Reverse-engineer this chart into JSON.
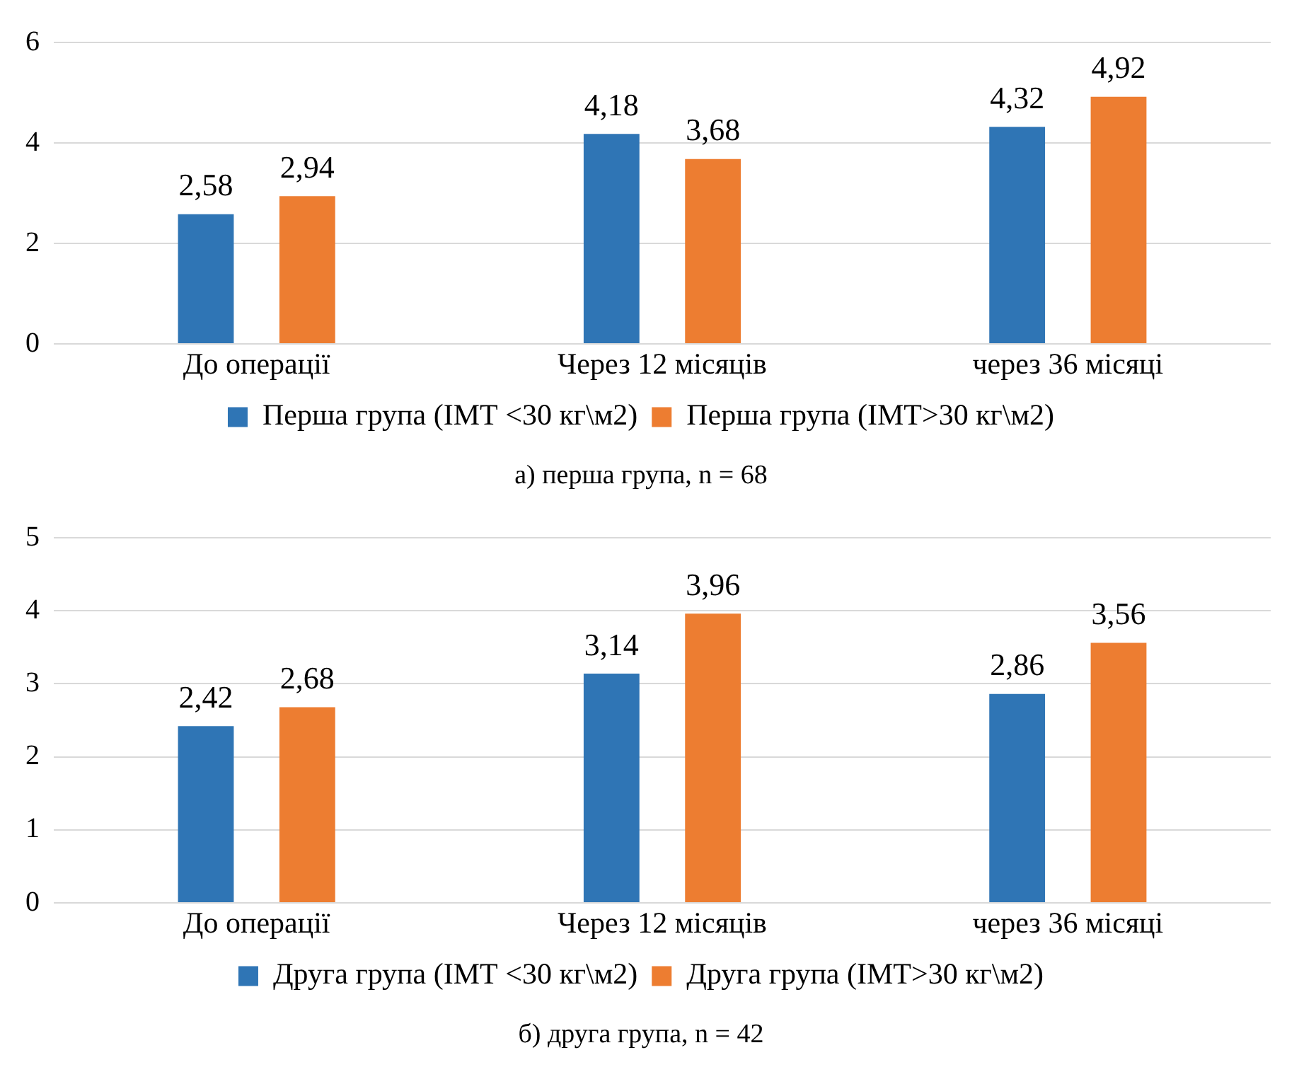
{
  "chart_data": [
    {
      "type": "bar",
      "title": "а) перша група, n = 68",
      "categories": [
        "До операції",
        "Через 12 місяців",
        "через 36 місяці"
      ],
      "series": [
        {
          "name": "Перша група (ІМТ <30 кг\\м2)",
          "color": "#2f75b5",
          "values": [
            2.58,
            4.18,
            4.32
          ],
          "value_labels": [
            "2,58",
            "4,18",
            "4,32"
          ]
        },
        {
          "name": "Перша група (ІМТ>30 кг\\м2)",
          "color": "#ed7d31",
          "values": [
            2.94,
            3.68,
            4.92
          ],
          "value_labels": [
            "2,94",
            "3,68",
            "4,92"
          ]
        }
      ],
      "ylim": [
        0,
        6
      ],
      "yticks": [
        0,
        2,
        4,
        6
      ],
      "grid": "y",
      "legend": "bottom"
    },
    {
      "type": "bar",
      "title": "б) друга група, n = 42",
      "categories": [
        "До операції",
        "Через 12 місяців",
        "через 36 місяці"
      ],
      "series": [
        {
          "name": "Друга група (ІМТ <30 кг\\м2)",
          "color": "#2f75b5",
          "values": [
            2.42,
            3.14,
            2.86
          ],
          "value_labels": [
            "2,42",
            "3,14",
            "2,86"
          ]
        },
        {
          "name": "Друга група (ІМТ>30 кг\\м2)",
          "color": "#ed7d31",
          "values": [
            2.68,
            3.96,
            3.56
          ],
          "value_labels": [
            "2,68",
            "3,96",
            "3,56"
          ]
        }
      ],
      "ylim": [
        0,
        5
      ],
      "yticks": [
        0,
        1,
        2,
        3,
        4,
        5
      ],
      "grid": "y",
      "legend": "bottom"
    }
  ]
}
